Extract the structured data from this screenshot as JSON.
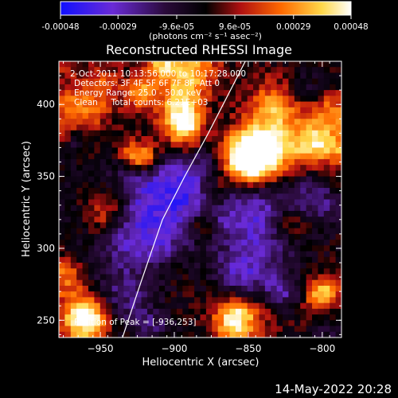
{
  "chart_data": {
    "type": "heatmap",
    "title": "Reconstructed RHESSI Image",
    "xlabel": "Heliocentric X (arcsec)",
    "ylabel": "Heliocentric Y (arcsec)",
    "xlim": [
      -978,
      -787
    ],
    "ylim": [
      238,
      430
    ],
    "x_ticks": [
      -950,
      -900,
      -850,
      -800
    ],
    "y_ticks": [
      250,
      300,
      350,
      400
    ],
    "colorbar": {
      "ticks": [
        {
          "value": -0.00048,
          "label": "-0.00048"
        },
        {
          "value": -0.00029,
          "label": "-0.00029"
        },
        {
          "value": -9.6e-05,
          "label": "-9.6e-05"
        },
        {
          "value": 9.6e-05,
          "label": "9.6e-05"
        },
        {
          "value": 0.00029,
          "label": "0.00029"
        },
        {
          "value": 0.00048,
          "label": "0.00048"
        }
      ],
      "range": [
        -0.00048,
        0.00048
      ],
      "unit_label": "(photons cm⁻² s⁻¹ asec⁻²)",
      "colors": [
        "#1010ff",
        "#6a2bd6",
        "#2a0a3a",
        "#000000",
        "#b01010",
        "#ff6a00",
        "#ffd84a",
        "#ffffff"
      ]
    },
    "annotations": [
      "2-Oct-2011 10:13:56.000 to 10:17:28.000",
      "Detectors: 3F 4F 5F 6F 7F 8F, Att 0",
      "Energy Range: 25.0 - 50.0 keV",
      "Clean     Total counts: 6.21E+03",
      "Position of Peak = [-936,253]"
    ],
    "limb": [
      [
        -935,
        238
      ],
      [
        -923,
        275
      ],
      [
        -908,
        320
      ],
      [
        -893,
        350
      ],
      [
        -877,
        380
      ],
      [
        -862,
        410
      ],
      [
        -852,
        430
      ]
    ],
    "grid": false
  },
  "footer": {
    "timestamp": "14-May-2022 20:28"
  }
}
